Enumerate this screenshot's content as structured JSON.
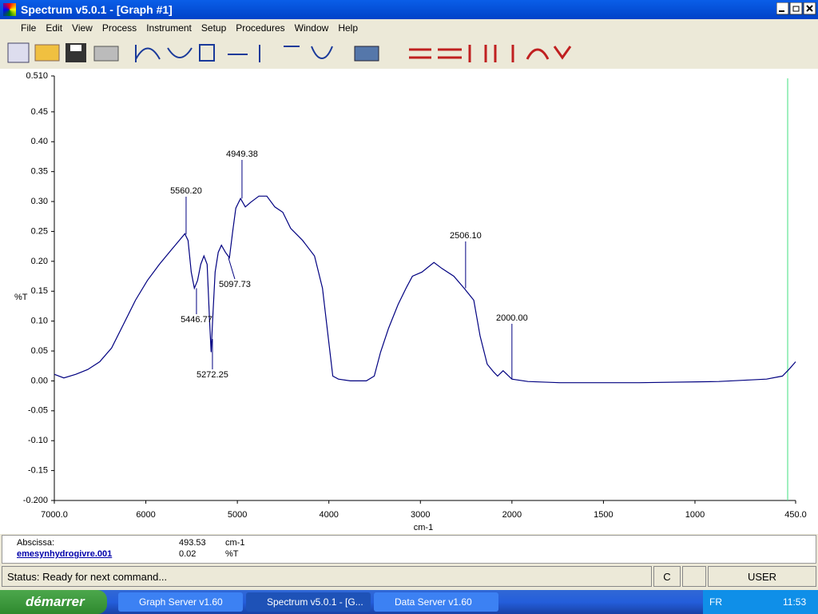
{
  "window": {
    "title": "Spectrum v5.0.1 - [Graph #1]"
  },
  "menu": [
    "File",
    "Edit",
    "View",
    "Process",
    "Instrument",
    "Setup",
    "Procedures",
    "Window",
    "Help"
  ],
  "chart_data": {
    "type": "line",
    "xlabel": "cm-1",
    "ylabel": "%T",
    "xlim": [
      7000,
      450
    ],
    "xticks": [
      {
        "value": 7000,
        "label": "7000.0"
      },
      6000,
      5000,
      4000,
      3000,
      2000,
      1500,
      1000,
      {
        "value": 450,
        "label": "450.0"
      }
    ],
    "ylim": [
      -0.2,
      0.51
    ],
    "yticks": [
      {
        "value": 0.51,
        "label": "0.510"
      },
      0.45,
      {
        "value": 0.4,
        "label": "0.40"
      },
      0.35,
      {
        "value": 0.3,
        "label": "0.30"
      },
      0.25,
      {
        "value": 0.2,
        "label": "0.20"
      },
      0.15,
      {
        "value": 0.1,
        "label": "0.10"
      },
      0.05,
      {
        "value": 0,
        "label": "0.00"
      },
      -0.05,
      {
        "value": -0.1,
        "label": "-0.10"
      },
      -0.15,
      {
        "value": -0.2,
        "label": "-0.200"
      }
    ],
    "x": [
      7000,
      6896,
      6765,
      6635,
      6504,
      6374,
      6243,
      6113,
      5983,
      5852,
      5722,
      5635,
      5574,
      5539,
      5504,
      5470,
      5435,
      5400,
      5365,
      5330,
      5304,
      5287,
      5270,
      5243,
      5209,
      5174,
      5130,
      5087,
      5052,
      5017,
      4965,
      4913,
      4852,
      4765,
      4678,
      4591,
      4504,
      4417,
      4287,
      4157,
      4070,
      4009,
      3957,
      3896,
      3765,
      3591,
      3504,
      3435,
      3348,
      3243,
      3157,
      3087,
      2983,
      2852,
      2765,
      2635,
      2522,
      2417,
      2348,
      2270,
      2200,
      2157,
      2096,
      2000,
      1913,
      1739,
      1304,
      870,
      609,
      522,
      487,
      450
    ],
    "series": [
      {
        "name": "emesynhydrogivre.001",
        "color": "#000080",
        "values": [
          0.011,
          0.005,
          0.011,
          0.019,
          0.032,
          0.055,
          0.095,
          0.135,
          0.168,
          0.195,
          0.219,
          0.235,
          0.246,
          0.235,
          0.182,
          0.155,
          0.168,
          0.195,
          0.209,
          0.195,
          0.102,
          0.048,
          0.102,
          0.182,
          0.215,
          0.227,
          0.215,
          0.206,
          0.249,
          0.289,
          0.305,
          0.291,
          0.299,
          0.309,
          0.309,
          0.291,
          0.282,
          0.255,
          0.235,
          0.209,
          0.155,
          0.075,
          0.008,
          0.003,
          0,
          0,
          0.008,
          0.048,
          0.088,
          0.128,
          0.155,
          0.175,
          0.182,
          0.198,
          0.188,
          0.175,
          0.155,
          0.135,
          0.075,
          0.028,
          0.015,
          0.008,
          0.017,
          0.003,
          -0.001,
          -0.003,
          -0.003,
          -0.001,
          0.003,
          0.008,
          0.019,
          0.032
        ]
      }
    ],
    "peaks": [
      {
        "x": 5560.2,
        "y": 0.245,
        "label": "5560.20"
      },
      {
        "x": 5446.77,
        "y": 0.155,
        "label": "5446.77"
      },
      {
        "x": 5272.25,
        "y": 0.07,
        "label": "5272.25"
      },
      {
        "x": 5097.73,
        "y": 0.206,
        "label": "5097.73"
      },
      {
        "x": 4949.38,
        "y": 0.305,
        "label": "4949.38"
      },
      {
        "x": 2506.1,
        "y": 0.155,
        "label": "2506.10"
      },
      {
        "x": 2000,
        "y": 0.003,
        "label": "2000.00"
      }
    ],
    "cursor": {
      "x": 493.53,
      "y": 0.02,
      "color": "#40e080"
    }
  },
  "info": {
    "abscissa_label": "Abscissa:",
    "x_unit": "cm-1",
    "y_unit": "%T"
  },
  "status": {
    "text": "Status: Ready for next command...",
    "mode": "C",
    "user": "USER"
  },
  "taskbar": {
    "start": "démarrer",
    "tasks": [
      "Graph Server v1.60",
      "Spectrum v5.0.1 - [G...",
      "Data Server v1.60"
    ],
    "lang": "FR",
    "clock": "11:53"
  }
}
